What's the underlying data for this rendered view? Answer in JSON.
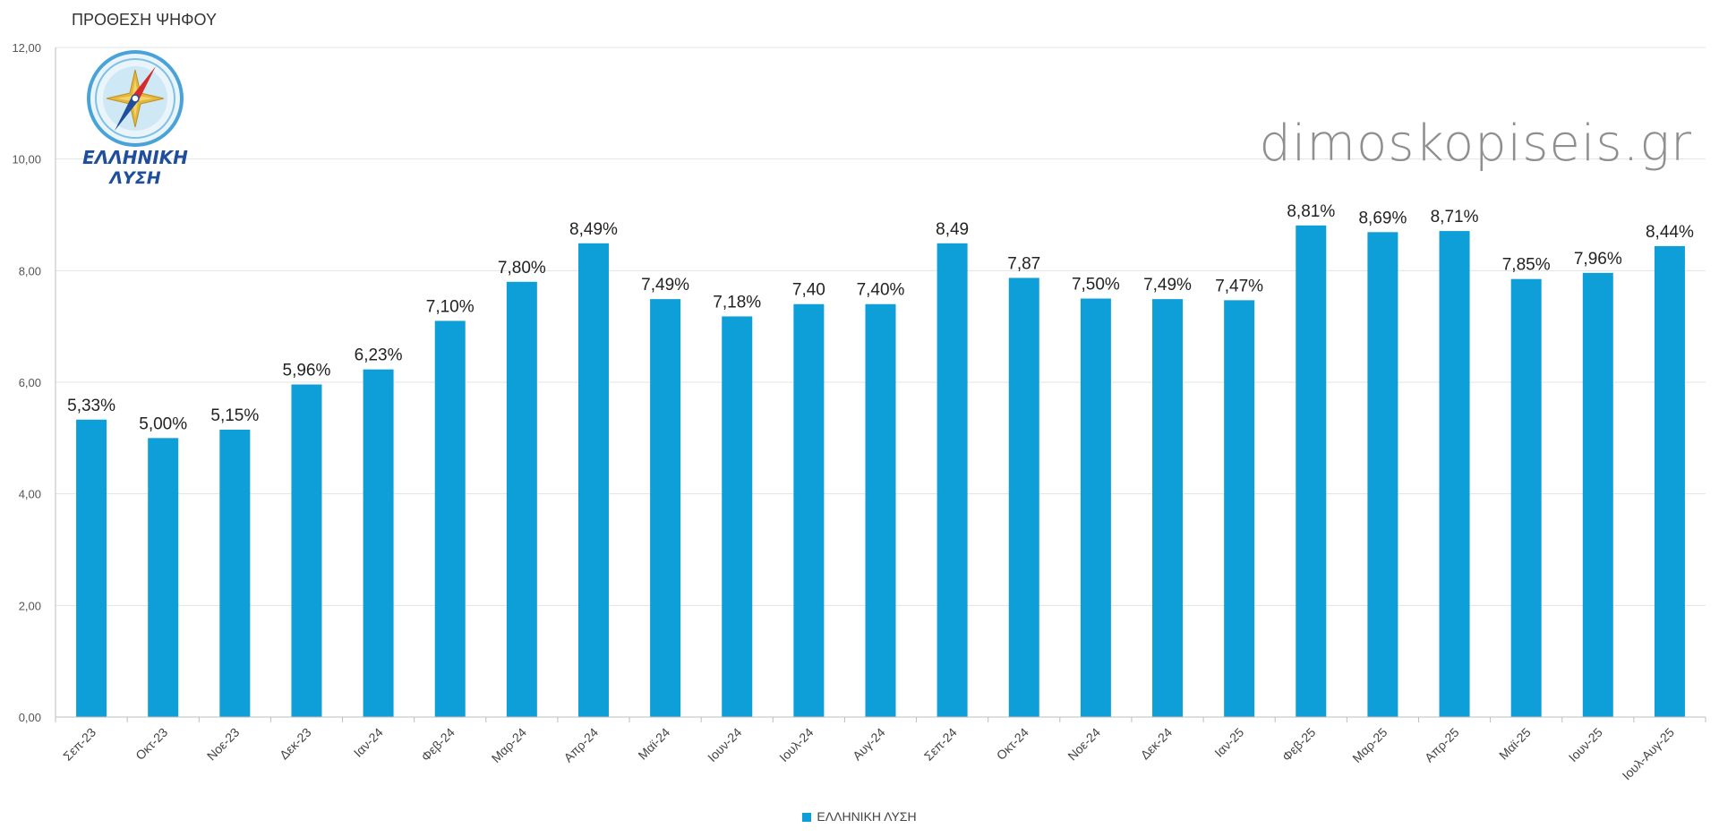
{
  "page": {
    "title": "ΠΡΟΘΕΣΗ ΨΗΦΟΥ",
    "watermark": "dimoskopiseis.gr"
  },
  "logo": {
    "line1": "ΕΛΛΗΝΙΚΗ",
    "line2": "ΛΥΣΗ",
    "colors": {
      "ring": "#4aa3d8",
      "text": "#1f4e9c",
      "needle_red": "#d62b2b",
      "needle_blue": "#1f4e9c",
      "rose": "#e3b73c"
    }
  },
  "chart_data": {
    "type": "bar",
    "title": "ΠΡΟΘΕΣΗ ΨΗΦΟΥ",
    "ylim": [
      0,
      12
    ],
    "yticks": [
      "0,00",
      "2,00",
      "4,00",
      "6,00",
      "8,00",
      "10,00",
      "12,00"
    ],
    "ytick_values": [
      0,
      2,
      4,
      6,
      8,
      10,
      12
    ],
    "grid": true,
    "legend_position": "bottom-center",
    "bar_color": "#0f9fd8",
    "categories": [
      "Σεπ-23",
      "Οκτ-23",
      "Νοε-23",
      "Δεκ-23",
      "Ιαν-24",
      "Φεβ-24",
      "Μαρ-24",
      "Απρ-24",
      "Μαϊ-24",
      "Ιουν-24",
      "Ιουλ-24",
      "Αυγ-24",
      "Σεπ-24",
      "Οκτ-24",
      "Νοε-24",
      "Δεκ-24",
      "Ιαν-25",
      "Φεβ-25",
      "Μαρ-25",
      "Απρ-25",
      "Μαϊ-25",
      "Ιουν-25",
      "Ιουλ-Αυγ-25"
    ],
    "series": [
      {
        "name": "ΕΛΛΗΝΙΚΗ ΛΥΣΗ",
        "values": [
          5.33,
          5.0,
          5.15,
          5.96,
          6.23,
          7.1,
          7.8,
          8.49,
          7.49,
          7.18,
          7.4,
          7.4,
          8.49,
          7.87,
          7.5,
          7.49,
          7.47,
          8.81,
          8.69,
          8.71,
          7.85,
          7.96,
          8.44
        ],
        "labels": [
          "5,33%",
          "5,00%",
          "5,15%",
          "5,96%",
          "6,23%",
          "7,10%",
          "7,80%",
          "8,49%",
          "7,49%",
          "7,18%",
          "7,40",
          "7,40%",
          "8,49",
          "7,87",
          "7,50%",
          "7,49%",
          "7,47%",
          "8,81%",
          "8,69%",
          "8,71%",
          "7,85%",
          "7,96%",
          "8,44%"
        ]
      }
    ]
  }
}
